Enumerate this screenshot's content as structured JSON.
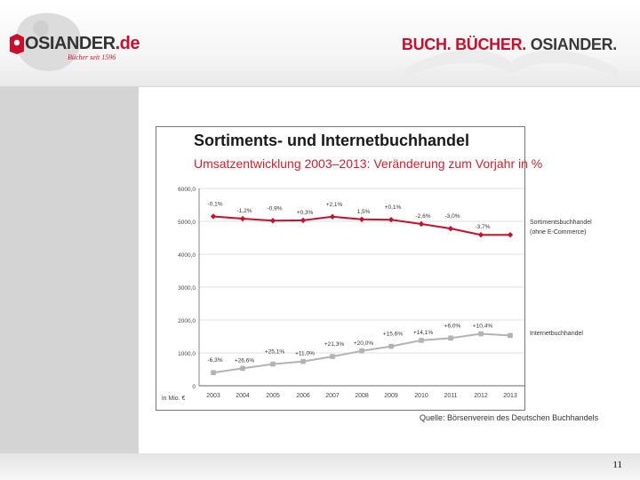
{
  "header": {
    "logo_text": "OSIANDER",
    "logo_domain": ".de",
    "logo_sub": "Bücher seit 1596",
    "tagline": {
      "w1": "BUCH.",
      "w2": "BÜCHER.",
      "w3": "OSIANDER."
    }
  },
  "colors": {
    "brand_red": "#c8102e",
    "series1": "#c8102e",
    "series2": "#b3b3b3"
  },
  "page_number": "11",
  "source": "Quelle: Börsenverein des Deutschen Buchhandels",
  "chart_data": {
    "type": "line",
    "title": "Sortiments- und Internetbuchhandel",
    "subtitle": "Umsatzentwicklung 2003–2013: Veränderung zum Vorjahr in %",
    "unit_label": "in Mio. €",
    "categories": [
      "2003",
      "2004",
      "2005",
      "2006",
      "2007",
      "2008",
      "2009",
      "2010",
      "2011",
      "2012",
      "2013"
    ],
    "y_ticks": [
      "6000,0",
      "5000,0",
      "4000,0",
      "3000,0",
      "2000,0",
      "1000,0",
      "0"
    ],
    "ylim": [
      0,
      6000
    ],
    "grid": true,
    "series": [
      {
        "name": "Sortimentsbuchhandel",
        "name2": "(ohne E-Commerce)",
        "color": "#c8102e",
        "marker": "diamond",
        "values": [
          5150,
          5080,
          5020,
          5030,
          5140,
          5060,
          5050,
          4920,
          4780,
          4590,
          4590
        ],
        "labels": [
          "-0,1%",
          "-1,2%",
          "-0,9%",
          "+0,3%",
          "+2,1%",
          "1,5%",
          "+0,1%",
          "-2,6%",
          "-3,0%",
          "-3,7%",
          ""
        ]
      },
      {
        "name": "Internetbuchhandel",
        "color": "#b3b3b3",
        "marker": "square",
        "values": [
          400,
          530,
          660,
          740,
          890,
          1060,
          1200,
          1380,
          1450,
          1580,
          1530
        ],
        "labels": [
          "-6,3%",
          "+26,6%",
          "+25,1%",
          "+11,0%",
          "+21,3%",
          "+20,0%",
          "+15,6%",
          "+14,1%",
          "+6,0%",
          "+10,4%",
          ""
        ]
      }
    ]
  }
}
